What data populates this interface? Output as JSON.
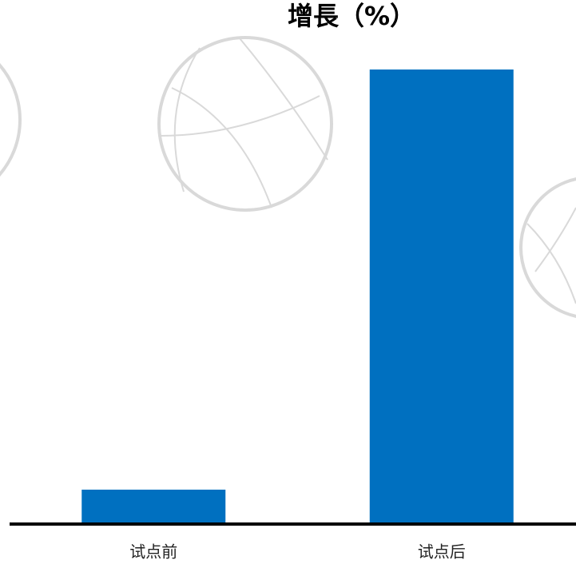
{
  "chart_data": {
    "type": "bar",
    "title": "增長（%）",
    "categories": [
      "试点前",
      "试点后"
    ],
    "values": [
      3,
      40.5
    ],
    "color": "#0070c0"
  }
}
